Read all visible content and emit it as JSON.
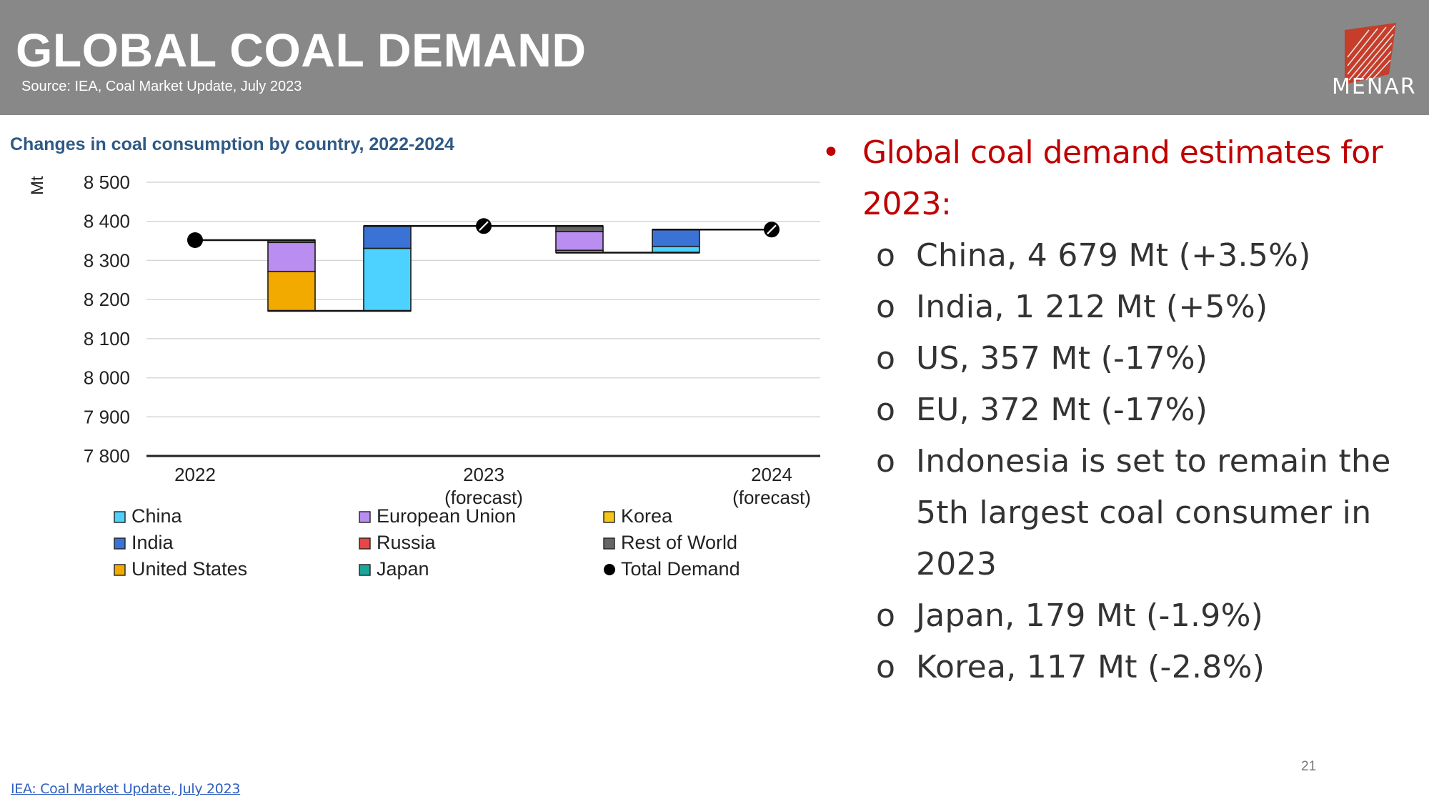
{
  "header": {
    "title": "GLOBAL COAL DEMAND",
    "source": "Source: IEA, Coal Market Update, July 2023",
    "logo_text": "MENAR",
    "background_color": "#888888"
  },
  "chart_data": {
    "type": "bar",
    "subtype": "waterfall",
    "title": "Changes in coal consumption by country, 2022-2024",
    "ylabel": "Mt",
    "ylim": [
      7800,
      8500
    ],
    "yticks": [
      8500,
      8400,
      8300,
      8200,
      8100,
      8000,
      7900,
      7800
    ],
    "ytick_labels": [
      "8 500",
      "8 400",
      "8 300",
      "8 200",
      "8 100",
      "8 000",
      "7 900",
      "7 800"
    ],
    "grid": true,
    "legend_position": "bottom",
    "xtick_labels": [
      {
        "line1": "2022",
        "line2": ""
      },
      {
        "line1": "2023",
        "line2": "(forecast)"
      },
      {
        "line1": "2024",
        "line2": "(forecast)"
      }
    ],
    "series_colors": {
      "China": "#4dd2ff",
      "India": "#3a72d6",
      "United States": "#f2a900",
      "European Union": "#b98ef0",
      "Russia": "#e84545",
      "Japan": "#1aa69a",
      "Korea": "#f5c518",
      "Rest of World": "#666666",
      "Total Demand": "#000000"
    },
    "legend": [
      {
        "name": "China",
        "marker": "square"
      },
      {
        "name": "India",
        "marker": "square"
      },
      {
        "name": "United States",
        "marker": "square"
      },
      {
        "name": "European Union",
        "marker": "square"
      },
      {
        "name": "Russia",
        "marker": "square"
      },
      {
        "name": "Japan",
        "marker": "square"
      },
      {
        "name": "Korea",
        "marker": "square"
      },
      {
        "name": "Rest of World",
        "marker": "square"
      },
      {
        "name": "Total Demand",
        "marker": "dot"
      }
    ],
    "totals": [
      {
        "year": "2022",
        "value": 8352
      },
      {
        "year": "2023 (forecast)",
        "value": 8388
      },
      {
        "year": "2024 (forecast)",
        "value": 8379
      }
    ],
    "changes": [
      {
        "period": "2022-2023",
        "group": "decreases",
        "segments": [
          {
            "series": "United States",
            "start": 8171,
            "end": 8272
          },
          {
            "series": "European Union",
            "start": 8272,
            "end": 8346
          },
          {
            "series": "Rest of World",
            "start": 8346,
            "end": 8352
          }
        ]
      },
      {
        "period": "2022-2023",
        "group": "increases",
        "segments": [
          {
            "series": "China",
            "start": 8171,
            "end": 8331
          },
          {
            "series": "India",
            "start": 8331,
            "end": 8388
          }
        ]
      },
      {
        "period": "2023-2024",
        "group": "decreases",
        "segments": [
          {
            "series": "United States",
            "start": 8320,
            "end": 8326
          },
          {
            "series": "European Union",
            "start": 8326,
            "end": 8374
          },
          {
            "series": "Rest of World",
            "start": 8374,
            "end": 8388
          }
        ]
      },
      {
        "period": "2023-2024",
        "group": "increases",
        "segments": [
          {
            "series": "China",
            "start": 8320,
            "end": 8336
          },
          {
            "series": "India",
            "start": 8336,
            "end": 8379
          }
        ]
      }
    ]
  },
  "bullets": {
    "main": "Global coal demand estimates for 2023:",
    "items": [
      "China, 4 679 Mt (+3.5%)",
      "India, 1 212 Mt (+5%)",
      "US, 357 Mt (-17%)",
      "EU, 372 Mt (-17%)",
      "Indonesia is set to remain the 5th largest coal consumer in 2023",
      "Japan, 179 Mt (-1.9%)",
      "Korea, 117 Mt (-2.8%)"
    ],
    "main_bullet_glyph": "•",
    "sub_bullet_glyph": "o",
    "main_color": "#c00000"
  },
  "footer": {
    "link_text": "IEA: Coal Market Update, July 2023",
    "page_number": "21"
  }
}
